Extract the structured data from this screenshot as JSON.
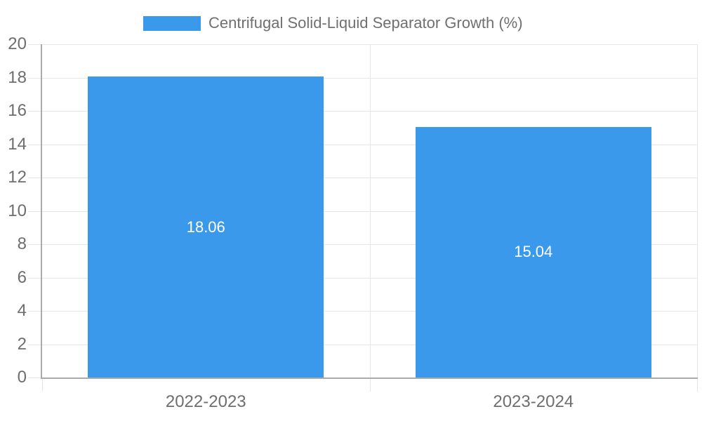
{
  "chart_data": {
    "type": "bar",
    "title": "Centrifugal Solid-Liquid Separator Growth (%)",
    "categories": [
      "2022-2023",
      "2023-2024"
    ],
    "values": [
      18.06,
      15.04
    ],
    "data_labels": [
      "18.06",
      "15.04"
    ],
    "ylim": [
      0,
      20
    ],
    "ytick_step": 2,
    "ytick_labels": [
      "0",
      "2",
      "4",
      "6",
      "8",
      "10",
      "12",
      "14",
      "16",
      "18",
      "20"
    ],
    "grid": true,
    "legend_position": "top-center",
    "legend_entries": [
      "Centrifugal Solid-Liquid Separator Growth (%)"
    ],
    "colors": {
      "bar": "#3B99EC",
      "grid": "#E6E6E6",
      "axis_line": "#ABABAB",
      "axis_text": "#6E6E6E",
      "legend_text": "#707070",
      "data_label_text": "#FFFFFF",
      "background": "#FFFFFF"
    }
  }
}
